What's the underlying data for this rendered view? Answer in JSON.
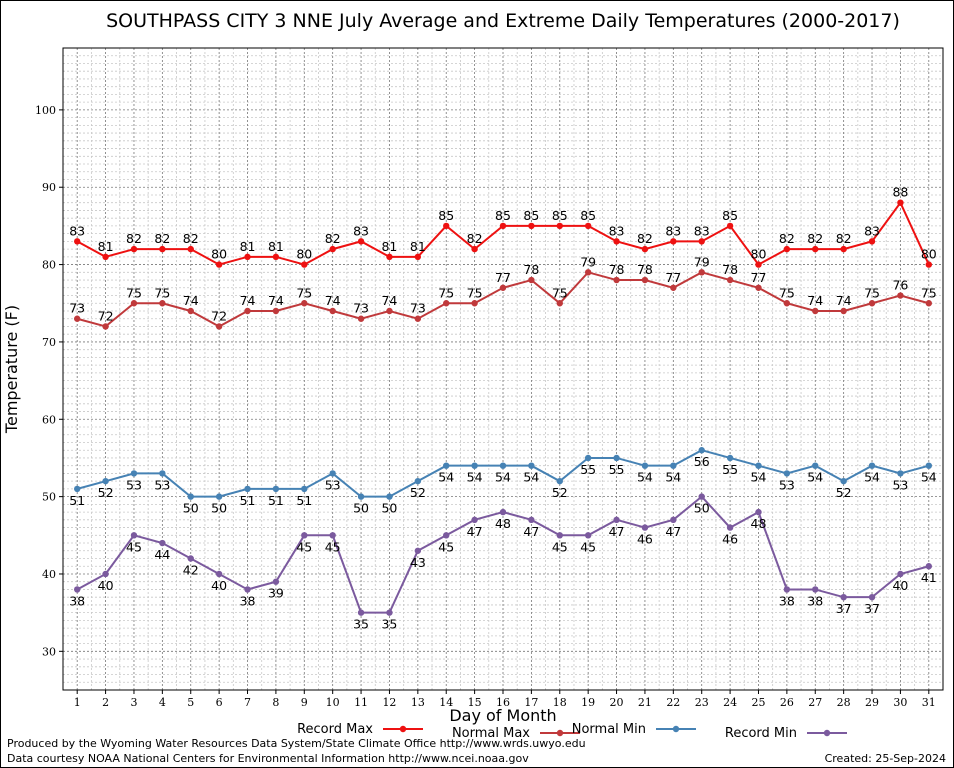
{
  "footer": {
    "produced_by": "Produced by the Wyoming Water Resources Data System/State Climate Office http://www.wrds.uwyo.edu",
    "courtesy": "Data courtesy NOAA National Centers for Environmental Information http://www.ncei.noaa.gov",
    "created": "Created:  25-Sep-2024"
  },
  "chart_data": {
    "type": "line",
    "title": "SOUTHPASS CITY 3 NNE July Average and Extreme Daily Temperatures (2000-2017)",
    "xlabel": "Day of Month",
    "ylabel": "Temperature (F)",
    "x": [
      1,
      2,
      3,
      4,
      5,
      6,
      7,
      8,
      9,
      10,
      11,
      12,
      13,
      14,
      15,
      16,
      17,
      18,
      19,
      20,
      21,
      22,
      23,
      24,
      25,
      26,
      27,
      28,
      29,
      30,
      31
    ],
    "xlim": [
      0.5,
      31.5
    ],
    "ylim": [
      25,
      108
    ],
    "yticks": [
      30,
      40,
      50,
      60,
      70,
      80,
      90,
      100
    ],
    "grid": true,
    "legend_position": "bottom",
    "series": [
      {
        "name": "Record Max",
        "color": "#ee1111",
        "label_pos": "above",
        "values": [
          83,
          81,
          82,
          82,
          82,
          80,
          81,
          81,
          80,
          82,
          83,
          81,
          81,
          85,
          82,
          85,
          85,
          85,
          85,
          83,
          82,
          83,
          83,
          85,
          80,
          82,
          82,
          82,
          83,
          88,
          80
        ]
      },
      {
        "name": "Normal Max",
        "color": "#c0393b",
        "label_pos": "above",
        "values": [
          73,
          72,
          75,
          75,
          74,
          72,
          74,
          74,
          75,
          74,
          73,
          74,
          73,
          75,
          75,
          77,
          78,
          75,
          79,
          78,
          78,
          77,
          79,
          78,
          77,
          75,
          74,
          74,
          75,
          76,
          75
        ]
      },
      {
        "name": "Normal Min",
        "color": "#4682b4",
        "label_pos": "below",
        "values": [
          51,
          52,
          53,
          53,
          50,
          50,
          51,
          51,
          51,
          53,
          50,
          50,
          52,
          54,
          54,
          54,
          54,
          52,
          55,
          55,
          54,
          54,
          56,
          55,
          54,
          53,
          54,
          52,
          54,
          53,
          54
        ]
      },
      {
        "name": "Record Min",
        "color": "#7b5a9e",
        "label_pos": "below",
        "values": [
          38,
          40,
          45,
          44,
          42,
          40,
          38,
          39,
          45,
          45,
          35,
          35,
          43,
          45,
          47,
          48,
          47,
          45,
          45,
          47,
          46,
          47,
          50,
          46,
          48,
          38,
          38,
          37,
          37,
          40,
          41
        ]
      }
    ]
  }
}
